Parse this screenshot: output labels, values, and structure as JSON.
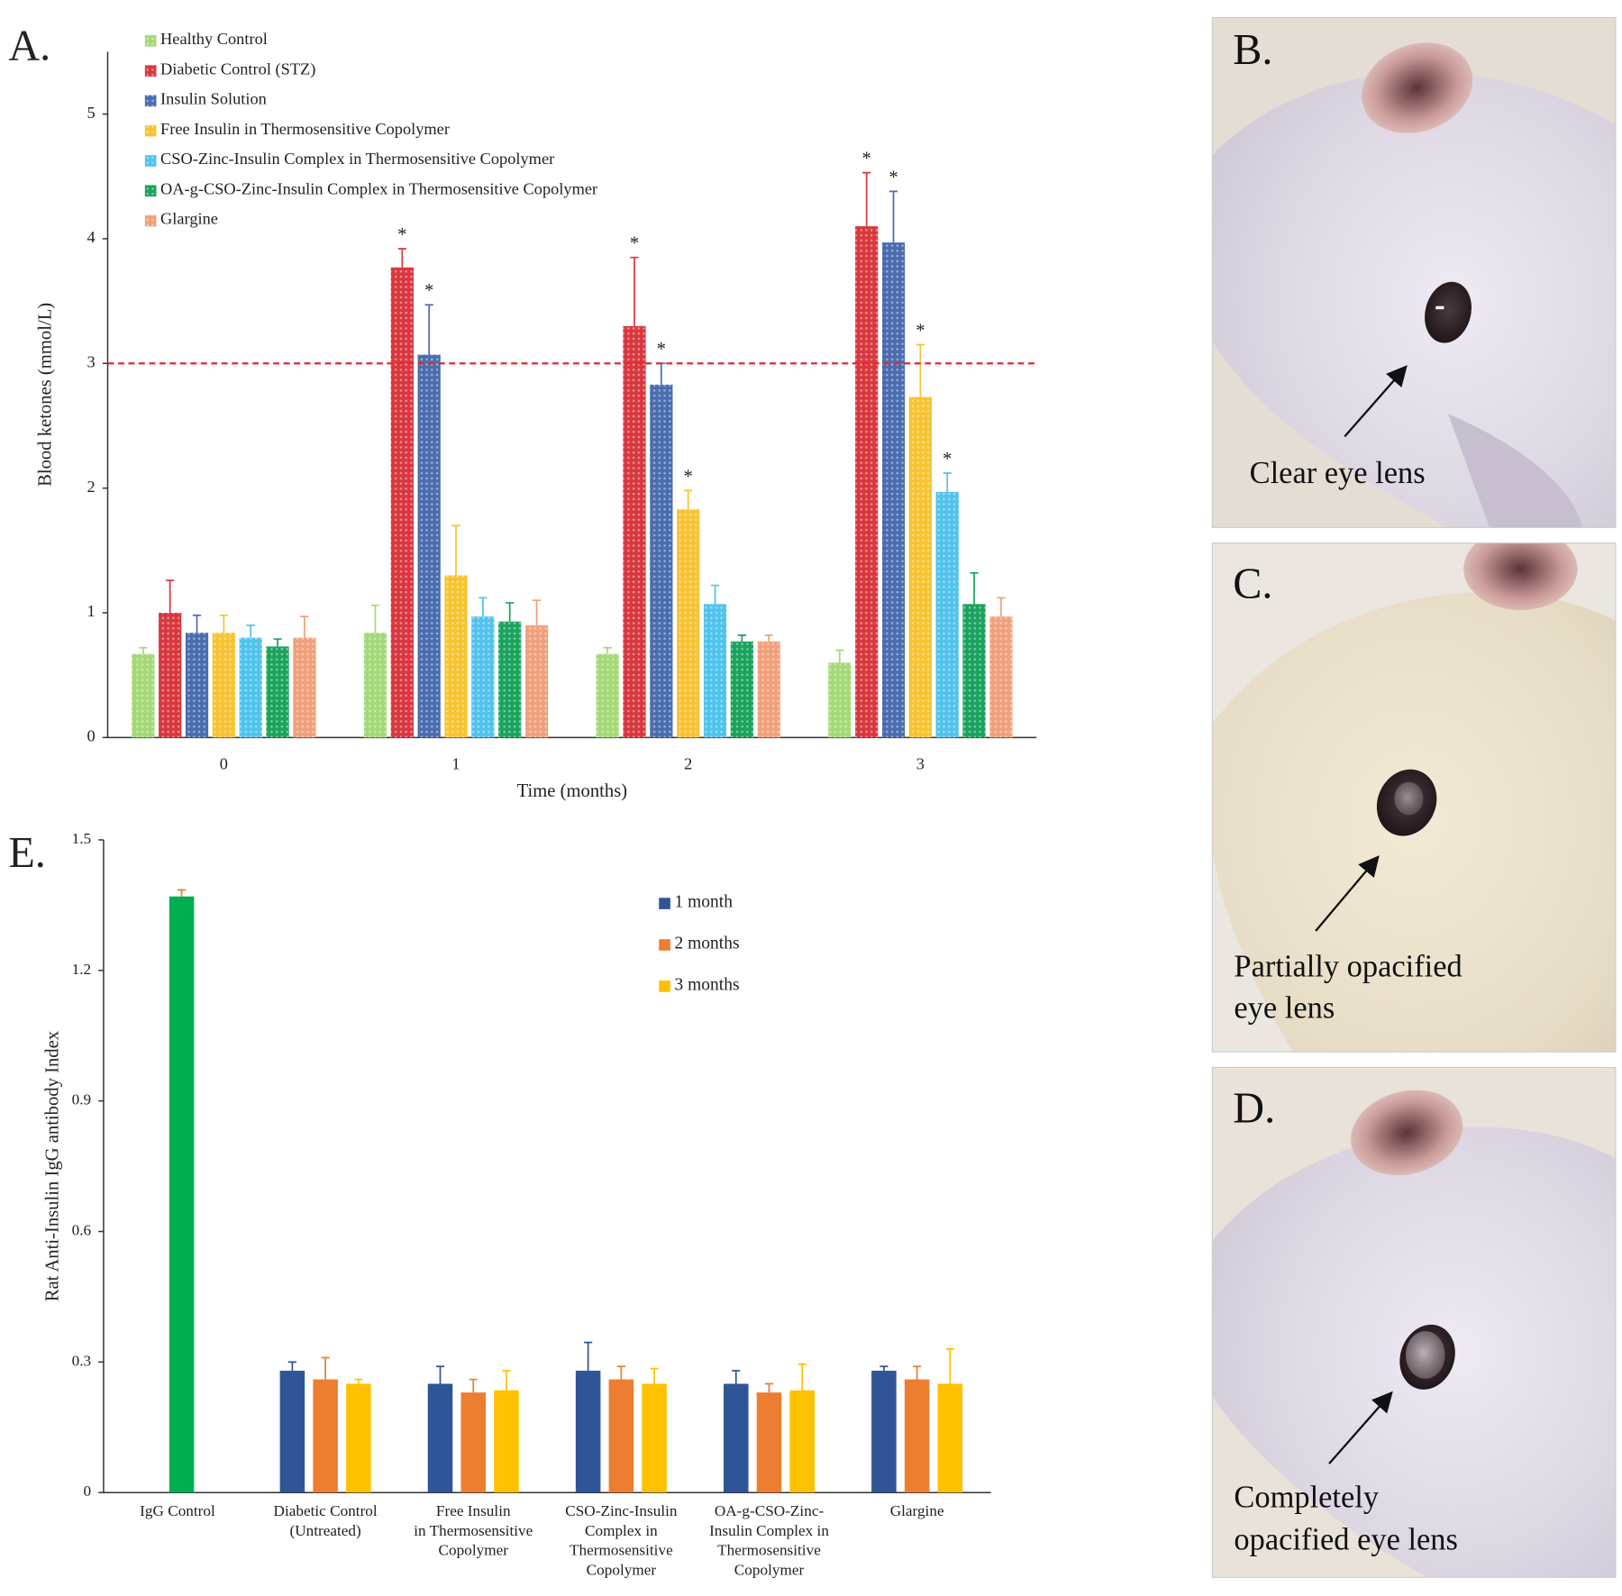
{
  "chart_data": [
    {
      "type": "bar",
      "panel_label": "A.",
      "xlabel": "Time (months)",
      "ylabel": "Blood ketones (mmol/L)",
      "categories": [
        "0",
        "1",
        "2",
        "3"
      ],
      "ylim": [
        0,
        5.5
      ],
      "yticks": [
        0,
        1,
        2,
        3,
        4,
        5
      ],
      "hatched": true,
      "threshold": {
        "value": 3,
        "color": "#e8262c"
      },
      "series": [
        {
          "name": "Healthy Control",
          "color": "#a3d977",
          "values": [
            0.67,
            0.84,
            0.67,
            0.6
          ],
          "errors": [
            0.05,
            0.22,
            0.05,
            0.1
          ]
        },
        {
          "name": "Diabetic Control (STZ)",
          "color": "#d9373f",
          "values": [
            1.0,
            3.77,
            3.3,
            4.1
          ],
          "errors": [
            0.26,
            0.15,
            0.55,
            0.43
          ],
          "significance": [
            null,
            "*",
            "*",
            "*"
          ]
        },
        {
          "name": "Insulin Solution",
          "color": "#4a6db0",
          "values": [
            0.84,
            3.07,
            2.83,
            3.97
          ],
          "errors": [
            0.14,
            0.4,
            0.17,
            0.41
          ],
          "significance": [
            null,
            "*",
            "*",
            "*"
          ]
        },
        {
          "name": "Free Insulin in Thermosensitive Copolymer",
          "color": "#f7c331",
          "values": [
            0.84,
            1.3,
            1.83,
            2.73
          ],
          "errors": [
            0.14,
            0.4,
            0.15,
            0.42
          ],
          "significance": [
            null,
            null,
            "*",
            "*"
          ]
        },
        {
          "name": "CSO-Zinc-Insulin Complex in Thermosensitive Copolymer",
          "color": "#4fc3ee",
          "values": [
            0.8,
            0.97,
            1.07,
            1.97
          ],
          "errors": [
            0.1,
            0.15,
            0.15,
            0.15
          ],
          "significance": [
            null,
            null,
            null,
            "*"
          ]
        },
        {
          "name": "OA-g-CSO-Zinc-Insulin Complex in Thermosensitive Copolymer",
          "color": "#1aa35c",
          "values": [
            0.73,
            0.93,
            0.77,
            1.07
          ],
          "errors": [
            0.06,
            0.15,
            0.05,
            0.25
          ]
        },
        {
          "name": "Glargine",
          "color": "#f0a07a",
          "values": [
            0.8,
            0.9,
            0.77,
            0.97
          ],
          "errors": [
            0.17,
            0.2,
            0.05,
            0.15
          ]
        }
      ]
    },
    {
      "type": "bar",
      "panel_label": "E.",
      "ylabel": "Rat Anti-Insulin IgG antibody Index",
      "categories": [
        [
          "IgG Control"
        ],
        [
          "Diabetic Control",
          "(Untreated)"
        ],
        [
          "Free Insulin",
          "in Thermosensitive",
          "Copolymer"
        ],
        [
          "CSO-Zinc-Insulin",
          "Complex in",
          "Thermosensitive",
          "Copolymer"
        ],
        [
          "OA-g-CSO-Zinc-",
          "Insulin Complex in",
          "Thermosensitive",
          "Copolymer"
        ],
        [
          "Glargine"
        ]
      ],
      "ylim": [
        0,
        1.5
      ],
      "yticks": [
        0,
        0.3,
        0.6,
        0.9,
        1.2,
        1.5
      ],
      "hatched": false,
      "control": {
        "value": 1.37,
        "error": 0.015,
        "color": "#00b050"
      },
      "series": [
        {
          "name": "1 month",
          "color": "#2f5597",
          "values": [
            null,
            0.28,
            0.25,
            0.28,
            0.25,
            0.28
          ],
          "errors": [
            null,
            0.02,
            0.04,
            0.065,
            0.03,
            0.01
          ]
        },
        {
          "name": "2 months",
          "color": "#ed7d31",
          "values": [
            null,
            0.26,
            0.23,
            0.26,
            0.23,
            0.26
          ],
          "errors": [
            null,
            0.05,
            0.03,
            0.03,
            0.02,
            0.03
          ]
        },
        {
          "name": "3 months",
          "color": "#ffc000",
          "values": [
            null,
            0.25,
            0.235,
            0.25,
            0.235,
            0.25
          ],
          "errors": [
            null,
            0.01,
            0.045,
            0.035,
            0.06,
            0.08
          ]
        }
      ]
    }
  ],
  "photos": [
    {
      "label": "B.",
      "caption": [
        "Clear eye lens"
      ]
    },
    {
      "label": "C.",
      "caption": [
        "Partially opacified",
        "eye lens"
      ]
    },
    {
      "label": "D.",
      "caption": [
        "Completely",
        "opacified eye lens"
      ]
    }
  ]
}
